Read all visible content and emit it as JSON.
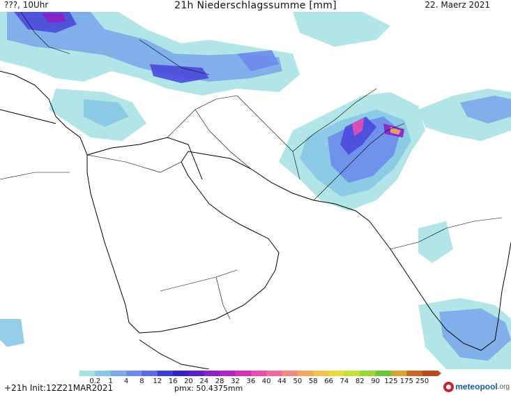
{
  "header": {
    "left": "???, 10Uhr",
    "title": "21h Niederschlagssumme [mm]",
    "date": "22. Maerz 2021"
  },
  "legend": {
    "levels": [
      "0.2",
      "1",
      "4",
      "8",
      "12",
      "16",
      "20",
      "24",
      "28",
      "32",
      "36",
      "40",
      "44",
      "50",
      "58",
      "66",
      "74",
      "82",
      "90",
      "125",
      "175",
      "250"
    ],
    "colors": [
      "#a9e2e4",
      "#88c8e6",
      "#7ba9ea",
      "#6d8bec",
      "#5a6ae8",
      "#3e3ed6",
      "#3422c8",
      "#5a1fc8",
      "#8a22c8",
      "#b026c0",
      "#d432b8",
      "#ea4cb0",
      "#f06a9c",
      "#f28a80",
      "#f2a862",
      "#f0c44a",
      "#e8dc3c",
      "#c6e038",
      "#9ad634",
      "#6cc63a",
      "#d8a630",
      "#c86a22",
      "#b84a1e"
    ]
  },
  "footer": {
    "left": "+21h Init:12Z21MAR2021",
    "pmx": "pmx: 50.4375mm",
    "logo_name": "meteopool",
    "logo_tld": ".org"
  },
  "map": {
    "precip_colors": {
      "light": "#a9e2e4",
      "low": "#88c8e6",
      "mid": "#7ba9ea",
      "mod": "#6d8bec",
      "heavy": "#4a4adc",
      "vheavy": "#8a22c8",
      "max": "#ea4cb0",
      "peak": "#f2a862"
    },
    "border_color": "#000000"
  }
}
